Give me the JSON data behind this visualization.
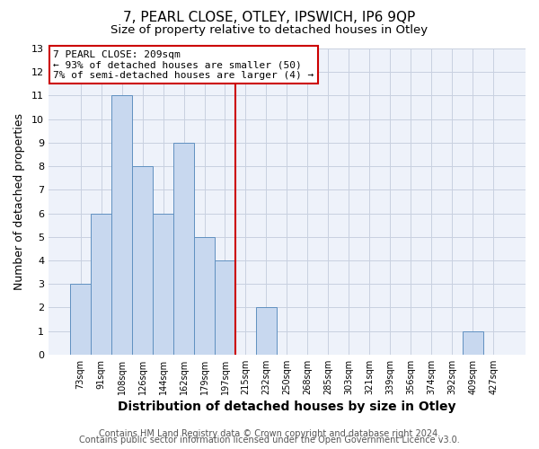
{
  "title": "7, PEARL CLOSE, OTLEY, IPSWICH, IP6 9QP",
  "subtitle": "Size of property relative to detached houses in Otley",
  "xlabel": "Distribution of detached houses by size in Otley",
  "ylabel": "Number of detached properties",
  "bar_color": "#c8d8ef",
  "bar_edgecolor": "#6090c0",
  "annotation_line1": "7 PEARL CLOSE: 209sqm",
  "annotation_line2": "← 93% of detached houses are smaller (50)",
  "annotation_line3": "7% of semi-detached houses are larger (4) →",
  "annotation_box_edgecolor": "#cc0000",
  "vline_color": "#cc0000",
  "categories": [
    "73sqm",
    "91sqm",
    "108sqm",
    "126sqm",
    "144sqm",
    "162sqm",
    "179sqm",
    "197sqm",
    "215sqm",
    "232sqm",
    "250sqm",
    "268sqm",
    "285sqm",
    "303sqm",
    "321sqm",
    "339sqm",
    "356sqm",
    "374sqm",
    "392sqm",
    "409sqm",
    "427sqm"
  ],
  "values": [
    3,
    6,
    11,
    8,
    6,
    9,
    5,
    4,
    0,
    2,
    0,
    0,
    0,
    0,
    0,
    0,
    0,
    0,
    0,
    1,
    0
  ],
  "vline_index": 8,
  "ylim": [
    0,
    13
  ],
  "yticks": [
    0,
    1,
    2,
    3,
    4,
    5,
    6,
    7,
    8,
    9,
    10,
    11,
    12,
    13
  ],
  "grid_color": "#c8d0e0",
  "background_color": "#ffffff",
  "plot_bg_color": "#eef2fa",
  "footer1": "Contains HM Land Registry data © Crown copyright and database right 2024.",
  "footer2": "Contains public sector information licensed under the Open Government Licence v3.0.",
  "title_fontsize": 11,
  "subtitle_fontsize": 9.5,
  "xlabel_fontsize": 10,
  "ylabel_fontsize": 9,
  "tick_fontsize": 7,
  "footer_fontsize": 7
}
